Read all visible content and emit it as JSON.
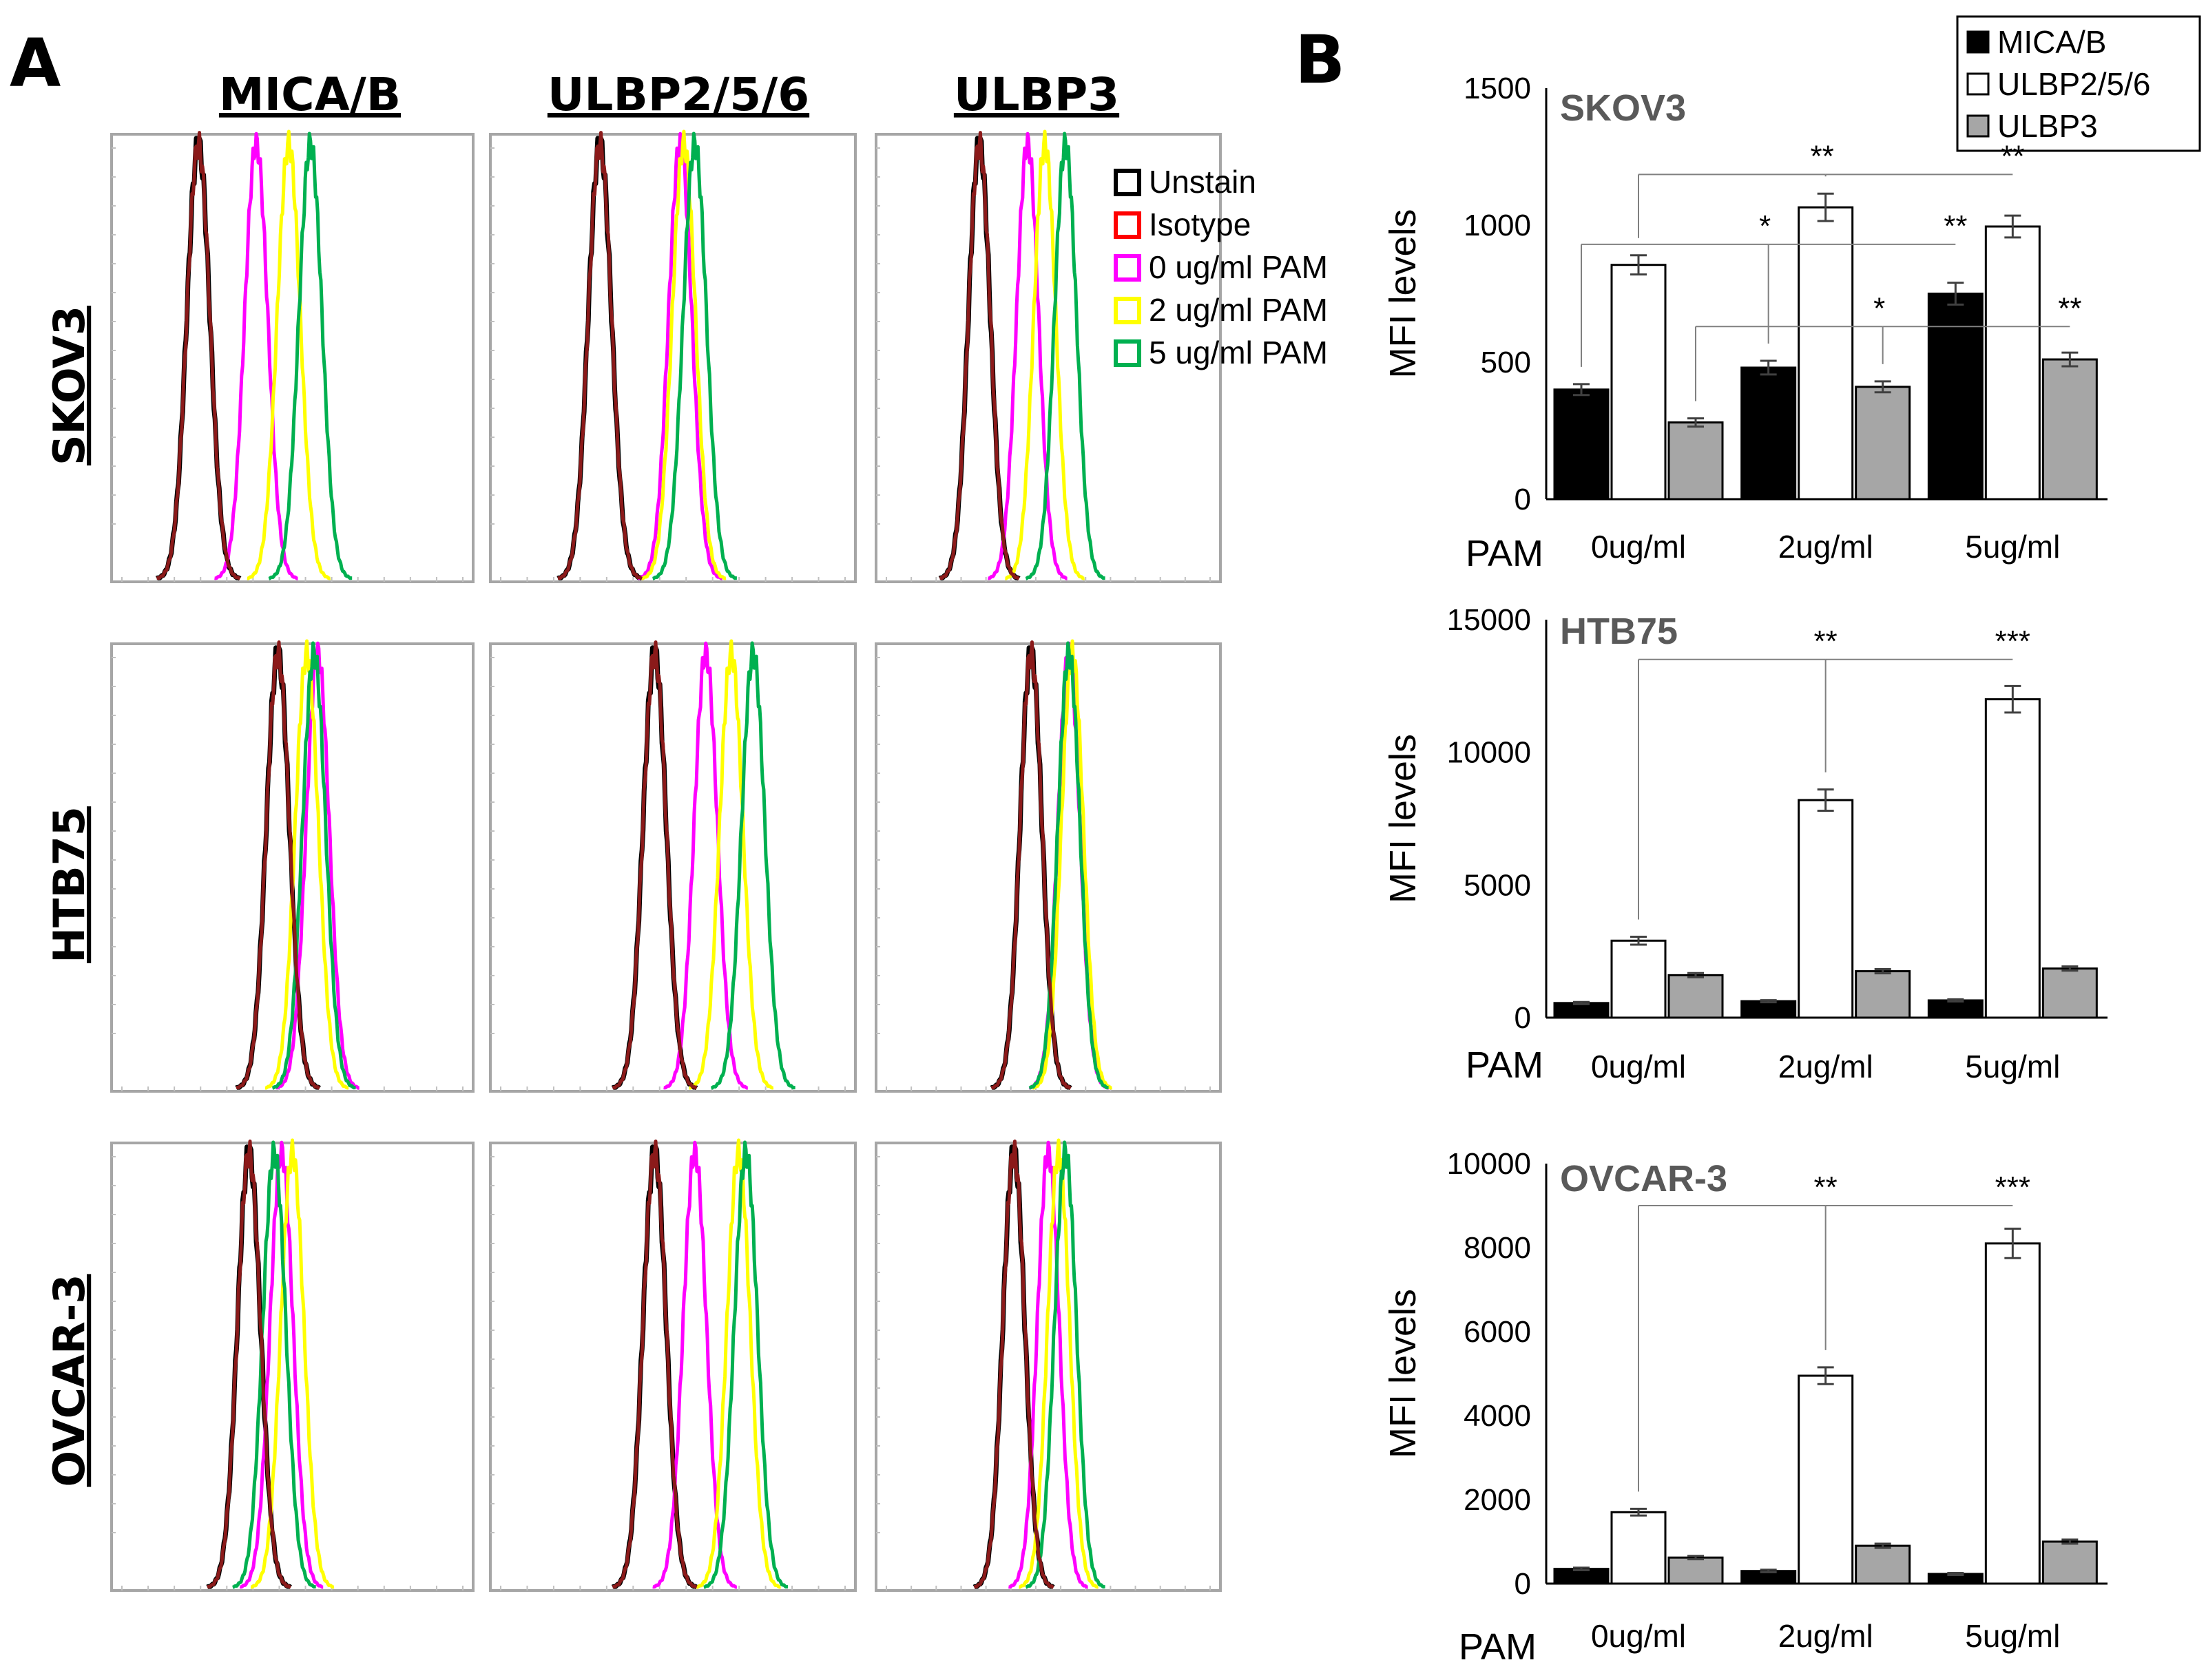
{
  "panels": {
    "a_label": "A",
    "b_label": "B"
  },
  "histograms": {
    "columns": [
      "MICA/B",
      "ULBP2/5/6",
      "ULBP3"
    ],
    "rows": [
      "SKOV3",
      "HTB75",
      "OVCAR-3"
    ],
    "legend": [
      {
        "label": "Unstain",
        "color": "#000000"
      },
      {
        "label": "Isotype",
        "color": "#ff0000"
      },
      {
        "label": "0 ug/ml PAM",
        "color": "#ff00ff"
      },
      {
        "label": "2 ug/ml PAM",
        "color": "#ffff00"
      },
      {
        "label": "5 ug/ml PAM",
        "color": "#00b050"
      }
    ],
    "peaks": [
      [
        [
          0.24,
          0.24,
          0.4,
          0.49,
          0.55
        ],
        [
          0.3,
          0.3,
          0.52,
          0.53,
          0.56
        ],
        [
          0.3,
          0.3,
          0.44,
          0.49,
          0.55
        ]
      ],
      [
        [
          0.46,
          0.46,
          0.57,
          0.54,
          0.56
        ],
        [
          0.45,
          0.45,
          0.59,
          0.66,
          0.72
        ],
        [
          0.45,
          0.45,
          0.56,
          0.57,
          0.56
        ]
      ],
      [
        [
          0.38,
          0.38,
          0.47,
          0.5,
          0.45
        ],
        [
          0.45,
          0.45,
          0.56,
          0.68,
          0.7
        ],
        [
          0.4,
          0.4,
          0.5,
          0.53,
          0.55
        ]
      ]
    ]
  },
  "chart_data": [
    {
      "type": "bar",
      "title": "SKOV3",
      "xlabel": "PAM",
      "ylabel": "MFI levels",
      "categories": [
        "0ug/ml",
        "2ug/ml",
        "5ug/ml"
      ],
      "ylim": [
        0,
        1500
      ],
      "yticks": [
        "0",
        "500",
        "1000",
        "1500"
      ],
      "series": [
        {
          "name": "MICA/B",
          "color": "#000000",
          "values": [
            400,
            480,
            750
          ],
          "errors": [
            20,
            25,
            40
          ]
        },
        {
          "name": "ULBP2/5/6",
          "color": "#ffffff",
          "values": [
            855,
            1065,
            995
          ],
          "errors": [
            35,
            50,
            40
          ]
        },
        {
          "name": "ULBP3",
          "color": "#a6a6a6",
          "values": [
            280,
            410,
            510
          ],
          "errors": [
            15,
            20,
            25
          ]
        }
      ],
      "significance": [
        {
          "label": "**",
          "from": [
            0,
            1
          ],
          "to": [
            1,
            1
          ]
        },
        {
          "label": "**",
          "from": [
            1,
            1
          ],
          "to": [
            2,
            1
          ]
        },
        {
          "label": "*",
          "from": [
            0,
            0
          ],
          "to": [
            1,
            0
          ]
        },
        {
          "label": "**",
          "from": [
            1,
            0
          ],
          "to": [
            2,
            0
          ]
        },
        {
          "label": "*",
          "from": [
            0,
            2
          ],
          "to": [
            1,
            2
          ]
        },
        {
          "label": "**",
          "from": [
            1,
            2
          ],
          "to": [
            2,
            2
          ]
        }
      ]
    },
    {
      "type": "bar",
      "title": "HTB75",
      "xlabel": "PAM",
      "ylabel": "MFI levels",
      "categories": [
        "0ug/ml",
        "2ug/ml",
        "5ug/ml"
      ],
      "ylim": [
        0,
        15000
      ],
      "yticks": [
        "0",
        "5000",
        "10000",
        "15000"
      ],
      "series": [
        {
          "name": "MICA/B",
          "color": "#000000",
          "values": [
            550,
            620,
            650
          ],
          "errors": [
            40,
            40,
            40
          ]
        },
        {
          "name": "ULBP2/5/6",
          "color": "#ffffff",
          "values": [
            2900,
            8200,
            12000
          ],
          "errors": [
            150,
            400,
            500
          ]
        },
        {
          "name": "ULBP3",
          "color": "#a6a6a6",
          "values": [
            1600,
            1750,
            1850
          ],
          "errors": [
            80,
            80,
            80
          ]
        }
      ],
      "significance": [
        {
          "label": "**",
          "from": [
            0,
            1
          ],
          "to": [
            1,
            1
          ]
        },
        {
          "label": "***",
          "from": [
            1,
            1
          ],
          "to": [
            2,
            1
          ]
        }
      ]
    },
    {
      "type": "bar",
      "title": "OVCAR-3",
      "xlabel": "PAM",
      "ylabel": "MFI levels",
      "categories": [
        "0ug/ml",
        "2ug/ml",
        "5ug/ml"
      ],
      "ylim": [
        0,
        10000
      ],
      "yticks": [
        "0",
        "2000",
        "4000",
        "6000",
        "8000",
        "10000"
      ],
      "series": [
        {
          "name": "MICA/B",
          "color": "#000000",
          "values": [
            350,
            300,
            230
          ],
          "errors": [
            30,
            30,
            25
          ]
        },
        {
          "name": "ULBP2/5/6",
          "color": "#ffffff",
          "values": [
            1700,
            4950,
            8100
          ],
          "errors": [
            80,
            200,
            350
          ]
        },
        {
          "name": "ULBP3",
          "color": "#a6a6a6",
          "values": [
            620,
            900,
            1000
          ],
          "errors": [
            40,
            50,
            50
          ]
        }
      ],
      "significance": [
        {
          "label": "**",
          "from": [
            0,
            1
          ],
          "to": [
            1,
            1
          ]
        },
        {
          "label": "***",
          "from": [
            1,
            1
          ],
          "to": [
            2,
            1
          ]
        }
      ]
    }
  ],
  "bar_legend": [
    "MICA/B",
    "ULBP2/5/6",
    "ULBP3"
  ]
}
